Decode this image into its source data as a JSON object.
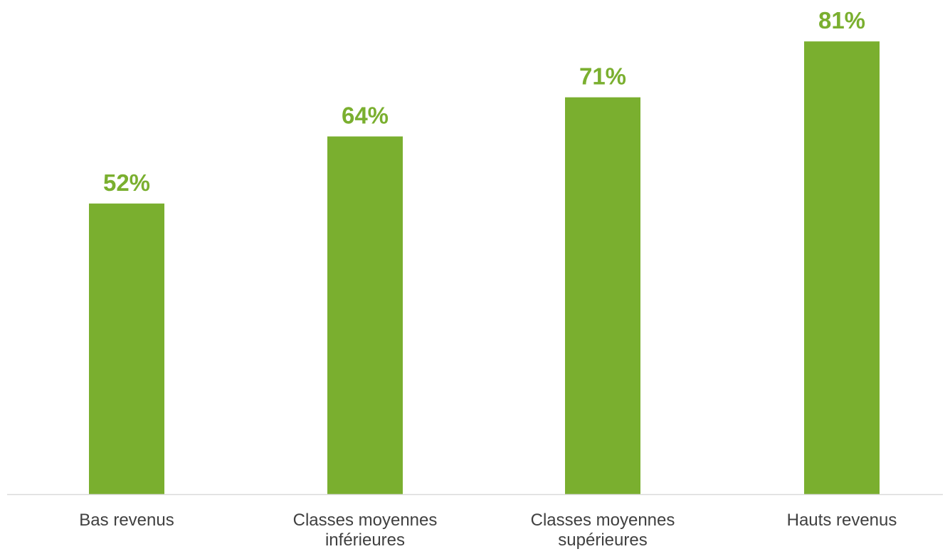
{
  "chart_data": {
    "type": "bar",
    "categories": [
      "Bas revenus",
      "Classes moyennes\ninférieures",
      "Classes moyennes\nsupérieures",
      "Hauts revenus"
    ],
    "values": [
      52,
      64,
      71,
      81
    ],
    "data_labels": [
      "52%",
      "64%",
      "71%",
      "81%"
    ],
    "unit": "%",
    "ylim": [
      0,
      100
    ],
    "grid": false,
    "legend": "none",
    "colors": {
      "bar": "#7aaf2f",
      "data_label": "#7aaf2f",
      "axis": "#d9d9d9",
      "category_text": "#404040"
    }
  }
}
